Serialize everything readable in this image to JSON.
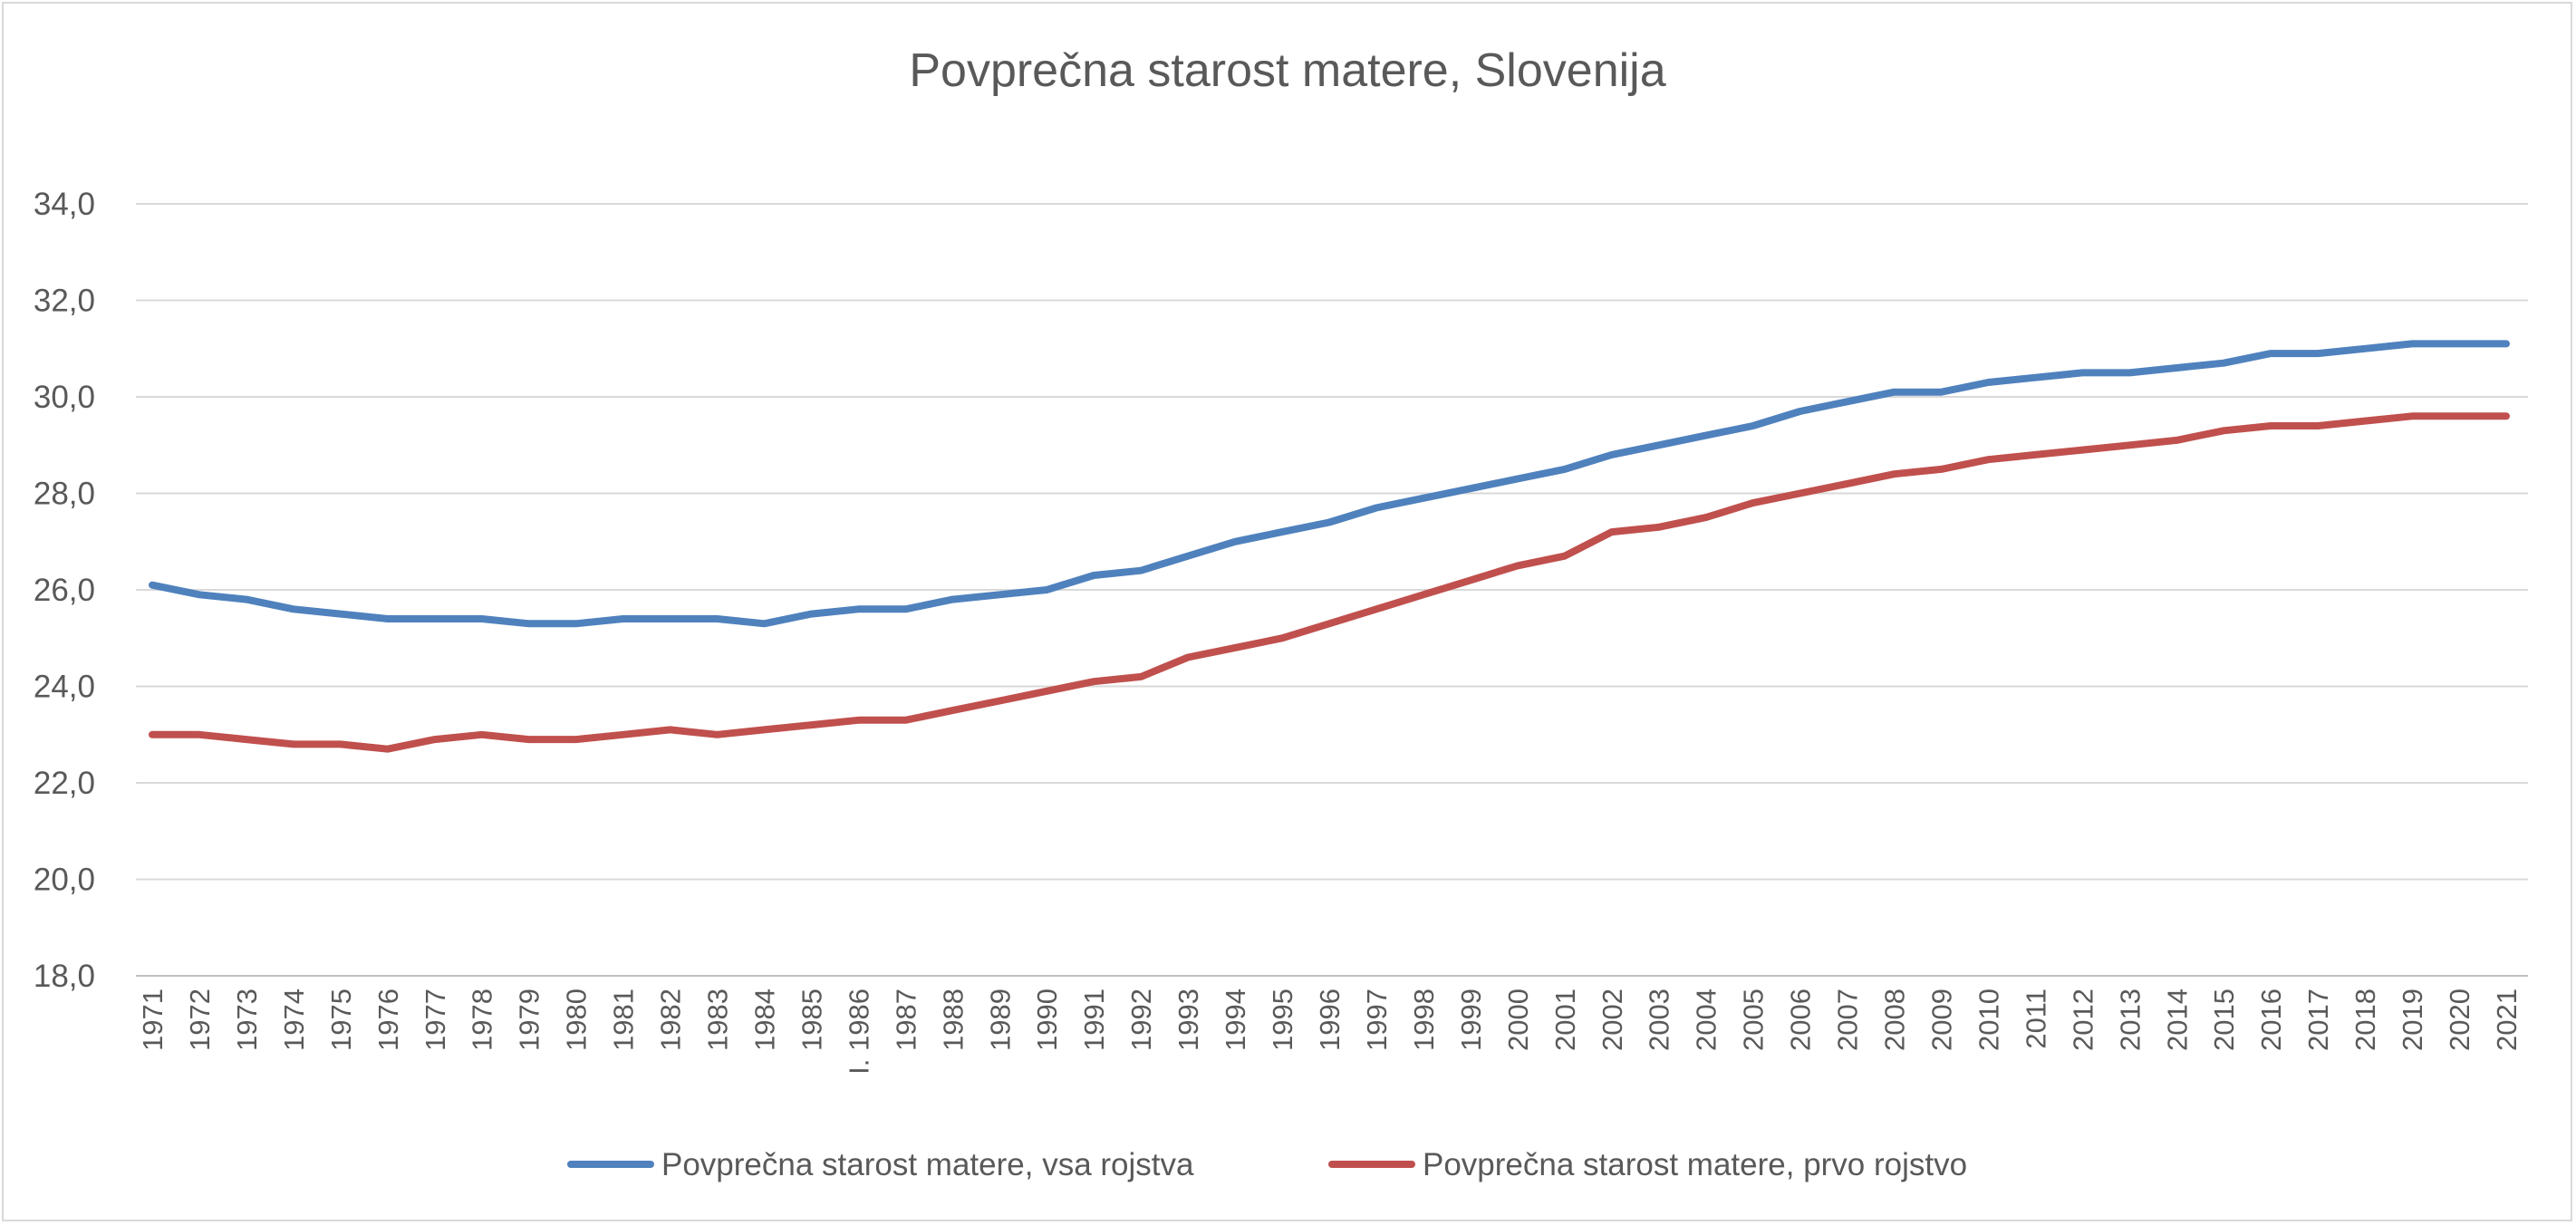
{
  "chart_data": {
    "type": "line",
    "title": "Povprečna starost matere, Slovenija",
    "xlabel": "",
    "ylabel": "",
    "ylim": [
      18,
      34
    ],
    "yticks": [
      "18,0",
      "20,0",
      "22,0",
      "24,0",
      "26,0",
      "28,0",
      "30,0",
      "32,0",
      "34,0"
    ],
    "ytick_values": [
      18,
      20,
      22,
      24,
      26,
      28,
      30,
      32,
      34
    ],
    "grid": true,
    "legend_position": "bottom",
    "categories": [
      "1971",
      "1972",
      "1973",
      "1974",
      "1975",
      "1976",
      "1977",
      "1978",
      "1979",
      "1980",
      "1981",
      "1982",
      "1983",
      "1984",
      "1985",
      "I. 1986",
      "1987",
      "1988",
      "1989",
      "1990",
      "1991",
      "1992",
      "1993",
      "1994",
      "1995",
      "1996",
      "1997",
      "1998",
      "1999",
      "2000",
      "2001",
      "2002",
      "2003",
      "2004",
      "2005",
      "2006",
      "2007",
      "2008",
      "2009",
      "2010",
      "2011",
      "2012",
      "2013",
      "2014",
      "2015",
      "2016",
      "2017",
      "2018",
      "2019",
      "2020",
      "2021"
    ],
    "series": [
      {
        "name": "Povprečna starost matere, vsa rojstva",
        "color": "#4f81bd",
        "values": [
          26.1,
          25.9,
          25.8,
          25.6,
          25.5,
          25.4,
          25.4,
          25.4,
          25.3,
          25.3,
          25.4,
          25.4,
          25.4,
          25.3,
          25.5,
          25.6,
          25.6,
          25.8,
          25.9,
          26.0,
          26.3,
          26.4,
          26.7,
          27.0,
          27.2,
          27.4,
          27.7,
          27.9,
          28.1,
          28.3,
          28.5,
          28.8,
          29.0,
          29.2,
          29.4,
          29.7,
          29.9,
          30.1,
          30.1,
          30.3,
          30.4,
          30.5,
          30.5,
          30.6,
          30.7,
          30.9,
          30.9,
          31.0,
          31.1,
          31.1,
          31.1
        ]
      },
      {
        "name": "Povprečna starost matere, prvo rojstvo",
        "color": "#c0504d",
        "values": [
          23.0,
          23.0,
          22.9,
          22.8,
          22.8,
          22.7,
          22.9,
          23.0,
          22.9,
          22.9,
          23.0,
          23.1,
          23.0,
          23.1,
          23.2,
          23.3,
          23.3,
          23.5,
          23.7,
          23.9,
          24.1,
          24.2,
          24.6,
          24.8,
          25.0,
          25.3,
          25.6,
          25.9,
          26.2,
          26.5,
          26.7,
          27.2,
          27.3,
          27.5,
          27.8,
          28.0,
          28.2,
          28.4,
          28.5,
          28.7,
          28.8,
          28.9,
          29.0,
          29.1,
          29.3,
          29.4,
          29.4,
          29.5,
          29.6,
          29.6,
          29.6
        ]
      }
    ]
  },
  "colors": {
    "gridline": "#d9d9d9",
    "axis": "#bfbfbf",
    "text": "#595959"
  }
}
